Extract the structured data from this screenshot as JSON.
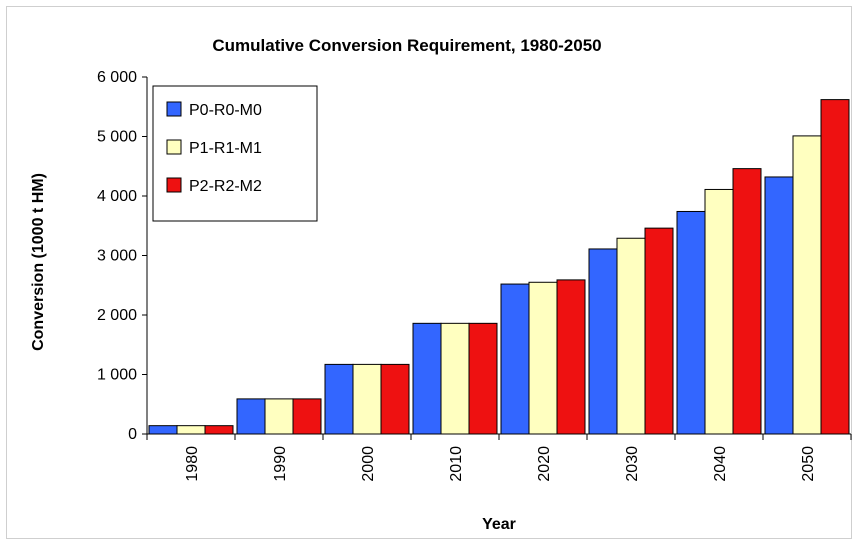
{
  "chart_data": {
    "type": "bar",
    "title": "Cumulative Conversion Requirement, 1980-2050",
    "xlabel": "Year",
    "ylabel": "Conversion (1000 t HM)",
    "categories": [
      "1980",
      "1990",
      "2000",
      "2010",
      "2020",
      "2030",
      "2040",
      "2050"
    ],
    "series": [
      {
        "name": "P0-R0-M0",
        "color": "#3366ff",
        "values": [
          140,
          590,
          1170,
          1860,
          2520,
          3110,
          3740,
          4320
        ]
      },
      {
        "name": "P1-R1-M1",
        "color": "#ffffc0",
        "values": [
          140,
          590,
          1170,
          1860,
          2550,
          3290,
          4110,
          5010
        ]
      },
      {
        "name": "P2-R2-M2",
        "color": "#ee1111",
        "values": [
          140,
          590,
          1170,
          1860,
          2590,
          3460,
          4460,
          5620
        ]
      }
    ],
    "ylim": [
      0,
      6000
    ],
    "yticks": [
      0,
      1000,
      2000,
      3000,
      4000,
      5000,
      6000
    ],
    "ytick_labels": [
      "0",
      "1 000",
      "2 000",
      "3 000",
      "4 000",
      "5 000",
      "6 000"
    ],
    "grid": false,
    "legend_position": "top-left"
  }
}
